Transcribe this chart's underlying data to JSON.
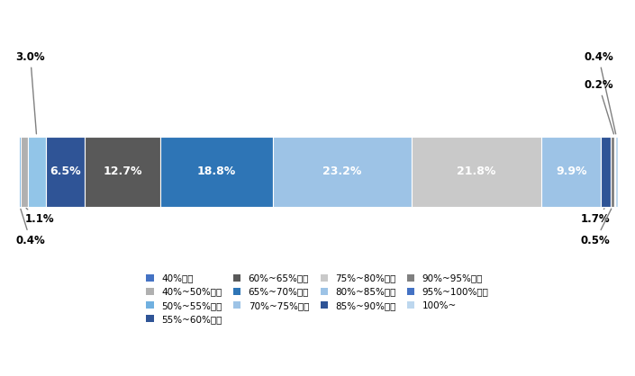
{
  "categories": [
    "40%未満",
    "40%~50%未満",
    "50%~55%未満",
    "55%~60%未満",
    "60%~65%未満",
    "65%~70%未満",
    "70%~75%未満",
    "75%~80%未満",
    "80%~85%未満",
    "85%~90%未満",
    "90%~95%未満",
    "95%~100%未満",
    "100%~"
  ],
  "values": [
    0.4,
    1.1,
    3.0,
    6.5,
    12.7,
    18.8,
    23.2,
    21.8,
    9.9,
    1.7,
    0.5,
    0.2,
    0.4
  ],
  "colors": [
    "#70B0E0",
    "#B0B0B0",
    "#92C5E8",
    "#2F5496",
    "#595959",
    "#2E75B6",
    "#9DC3E6",
    "#C9C9C9",
    "#9DC3E6",
    "#2F5496",
    "#808080",
    "#4472C4",
    "#BDD7EE"
  ],
  "legend_labels": [
    "40%未満",
    "40%~50%未満",
    "50%~55%未満",
    "55%~60%未満",
    "60%~65%未満",
    "65%~70%未満",
    "70%~75%未満",
    "75%~80%未満",
    "80%~85%未満",
    "85%~90%未満",
    "90%~95%未満",
    "95%~100%未満",
    "100%~"
  ],
  "legend_colors": [
    "#4472C4",
    "#B0B0B0",
    "#70B0E0",
    "#2F5496",
    "#595959",
    "#2E75B6",
    "#9DC3E6",
    "#C9C9C9",
    "#9DC3E6",
    "#2F5496",
    "#808080",
    "#4472C4",
    "#BDD7EE"
  ],
  "figsize": [
    7.05,
    4.18
  ],
  "dpi": 100
}
